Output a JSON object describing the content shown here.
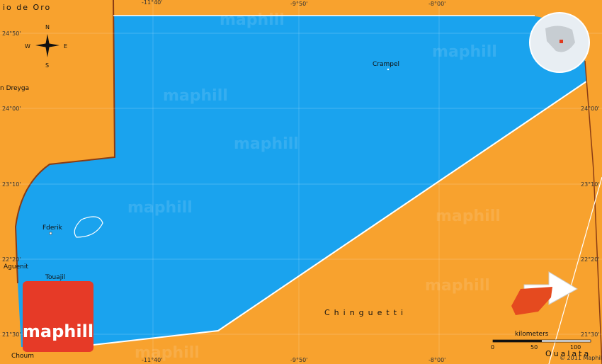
{
  "map": {
    "region_label": "io de Oro",
    "cut_label_left": "n Dreyga",
    "longitudes": [
      "-11°40'",
      "-9°50'",
      "-8°00'"
    ],
    "latitudes": [
      "24°50'",
      "24°00'",
      "23°10'",
      "22°20'",
      "21°30'"
    ],
    "places": {
      "crampel": "Crampel",
      "fderik": "Fderik",
      "touajil": "Touajil",
      "aguenit": "Aguenit",
      "choum": "Choum",
      "chinguetti": "Chinguetti",
      "oualata": "Oualata"
    },
    "compass": {
      "n": "N",
      "e": "E",
      "s": "S",
      "w": "W"
    },
    "scale": {
      "unit": "kilometers",
      "ticks": [
        "0",
        "50",
        "100"
      ]
    },
    "logo": "maphill",
    "watermark": "maphill",
    "copyright": "© 2011 Maphill"
  }
}
